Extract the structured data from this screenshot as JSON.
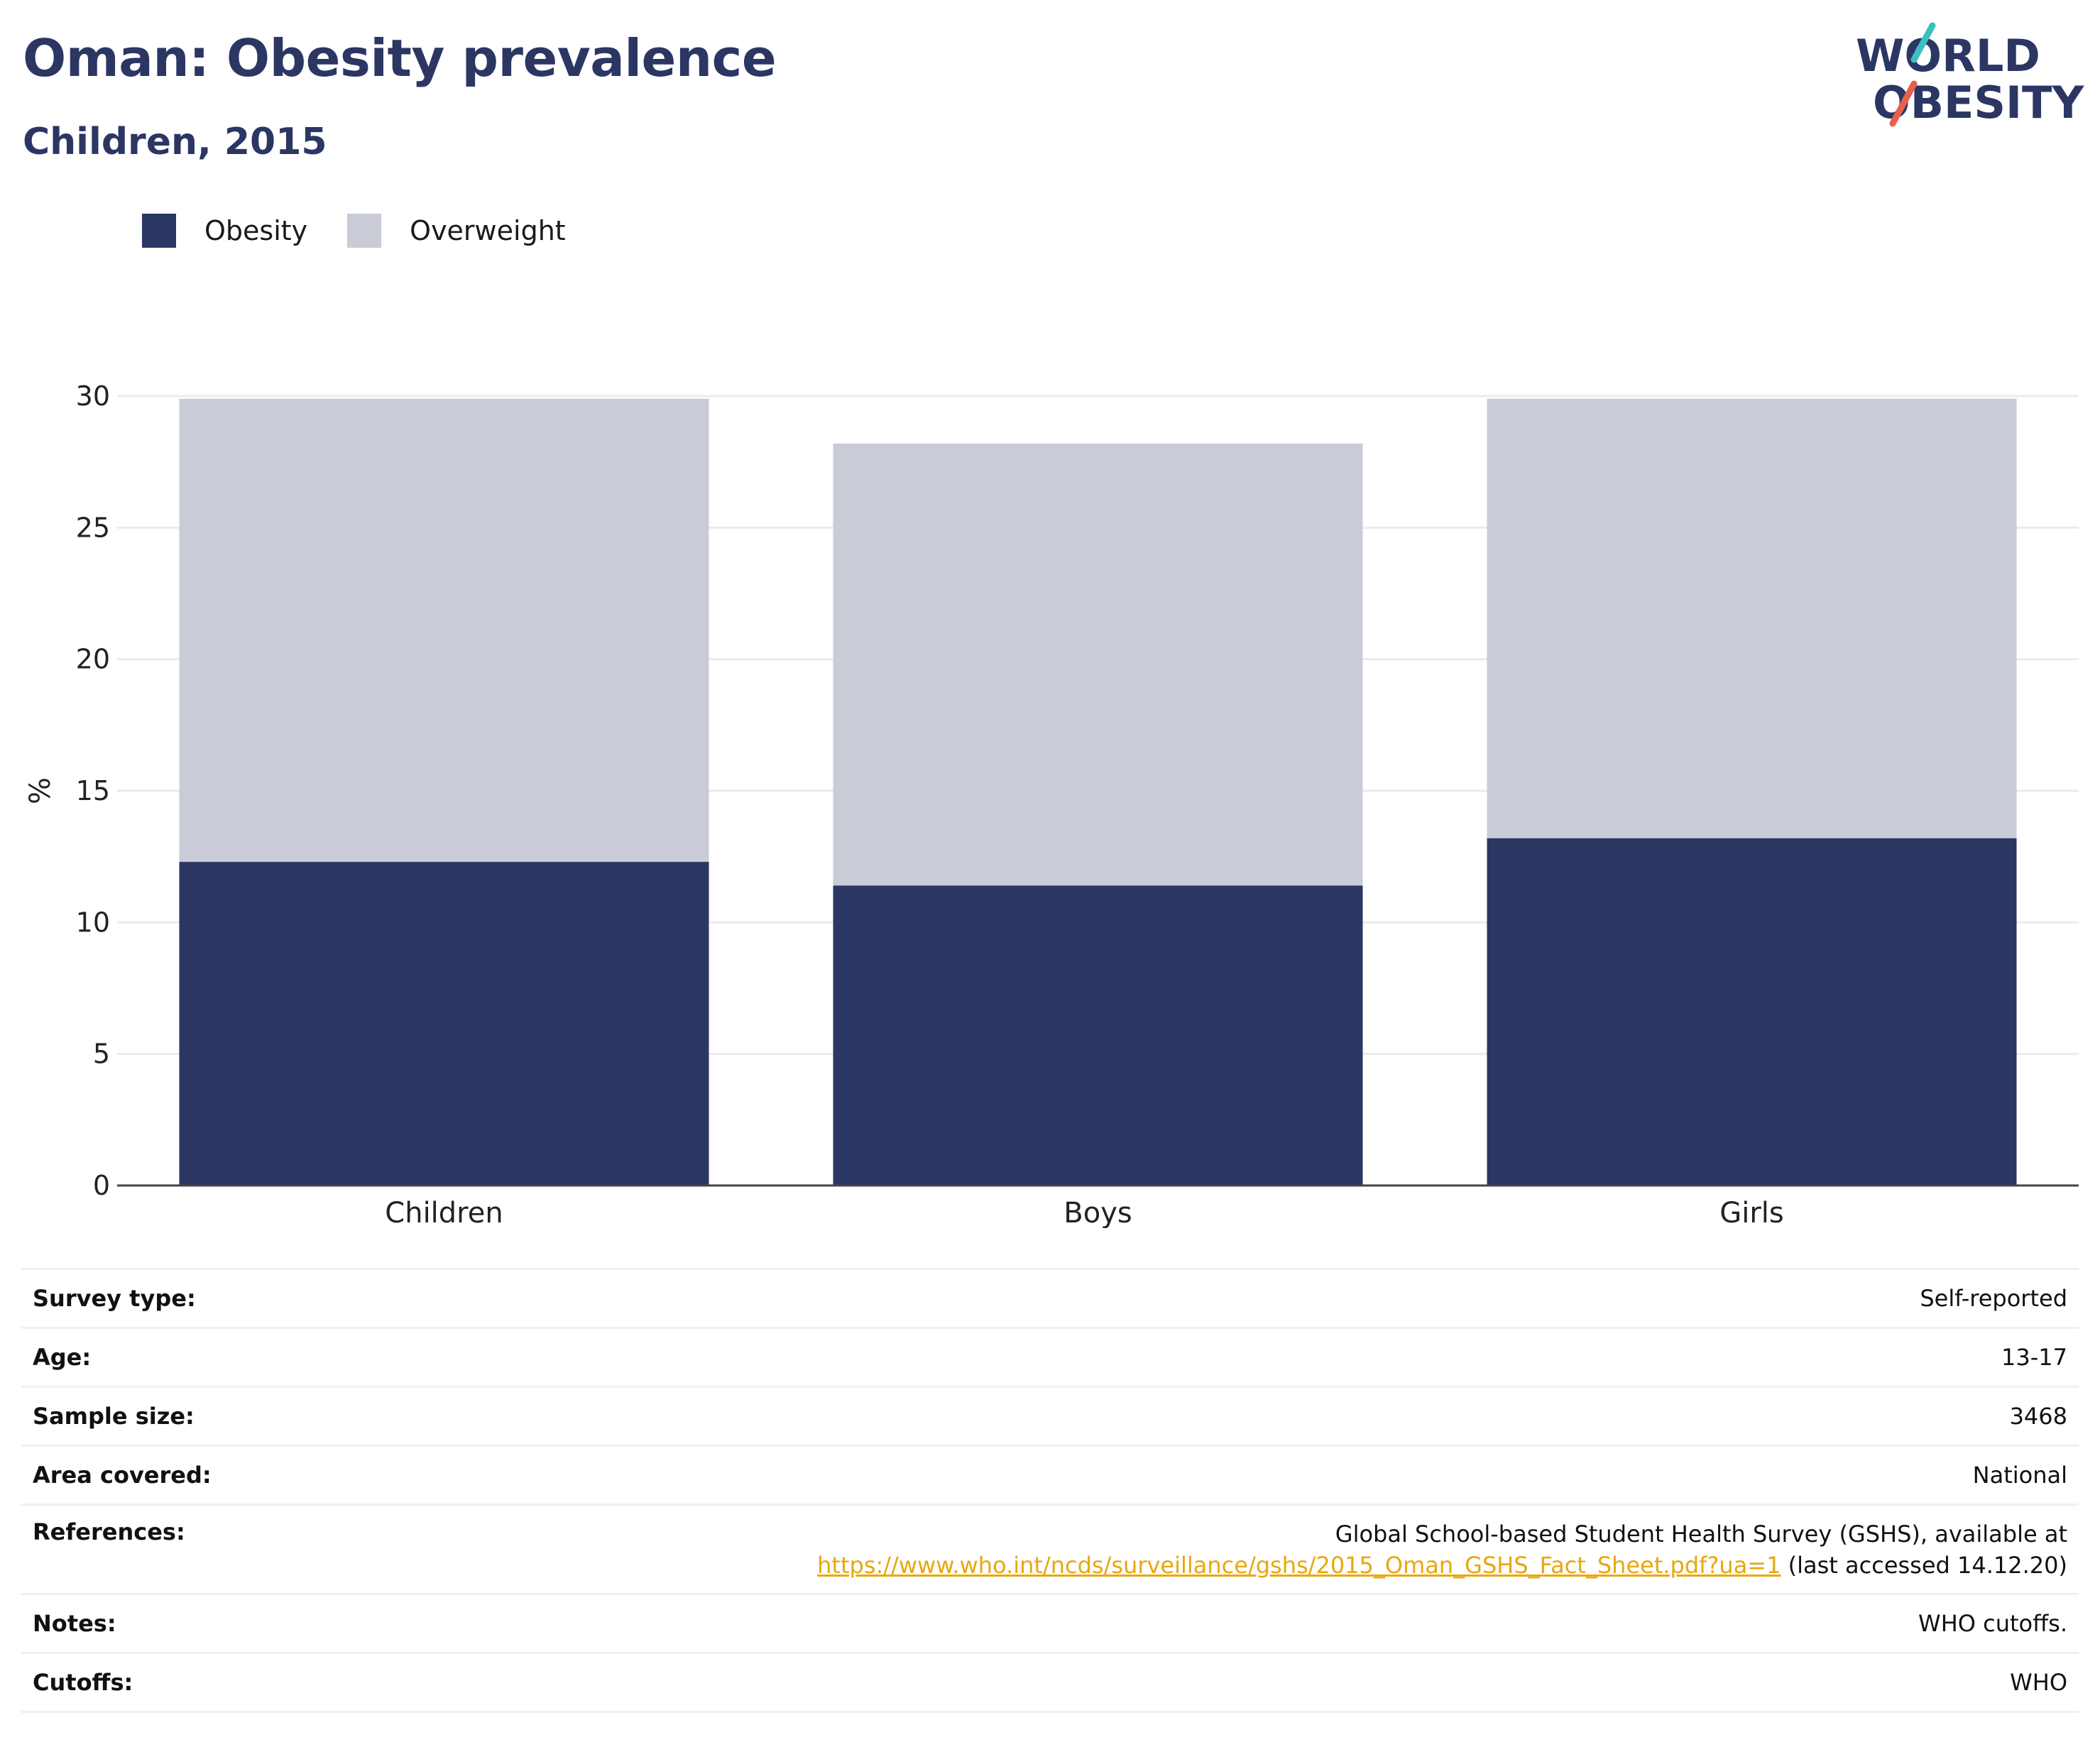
{
  "header": {
    "title": "Oman: Obesity prevalence",
    "subtitle": "Children, 2015"
  },
  "logo": {
    "line1": "WORLD",
    "line2": "OBESITY",
    "colors": {
      "text": "#2b3663",
      "slash_top": "#3bbfbf",
      "slash_bottom": "#e8604c"
    }
  },
  "colors": {
    "obesity": "#2b3663",
    "overweight": "#c9cbd7",
    "gridline": "#ebebeb",
    "axis": "#444444",
    "link": "#e8a70f"
  },
  "chart_data": {
    "type": "bar",
    "stacked": true,
    "categories": [
      "Children",
      "Boys",
      "Girls"
    ],
    "series": [
      {
        "name": "Obesity",
        "values": [
          12.3,
          11.4,
          13.2
        ]
      },
      {
        "name": "Overweight",
        "values": [
          17.6,
          16.8,
          16.7
        ]
      }
    ],
    "ylabel": "%",
    "xlabel": "",
    "ylim": [
      0,
      30
    ],
    "yticks": [
      0,
      5,
      10,
      15,
      20,
      25,
      30
    ],
    "grid": true,
    "legend_position": "top-left"
  },
  "meta": {
    "survey_type": {
      "label": "Survey type:",
      "value": "Self-reported"
    },
    "age": {
      "label": "Age:",
      "value": "13-17"
    },
    "sample_size": {
      "label": "Sample size:",
      "value": "3468"
    },
    "area_covered": {
      "label": "Area covered:",
      "value": "National"
    },
    "references": {
      "label": "References:",
      "line1": "Global School-based Student Health Survey (GSHS), available at",
      "link": "https://www.who.int/ncds/surveillance/gshs/2015_Oman_GSHS_Fact_Sheet.pdf?ua=1",
      "suffix": " (last accessed 14.12.20)"
    },
    "notes": {
      "label": "Notes:",
      "value": "WHO cutoffs."
    },
    "cutoffs": {
      "label": "Cutoffs:",
      "value": "WHO"
    }
  }
}
